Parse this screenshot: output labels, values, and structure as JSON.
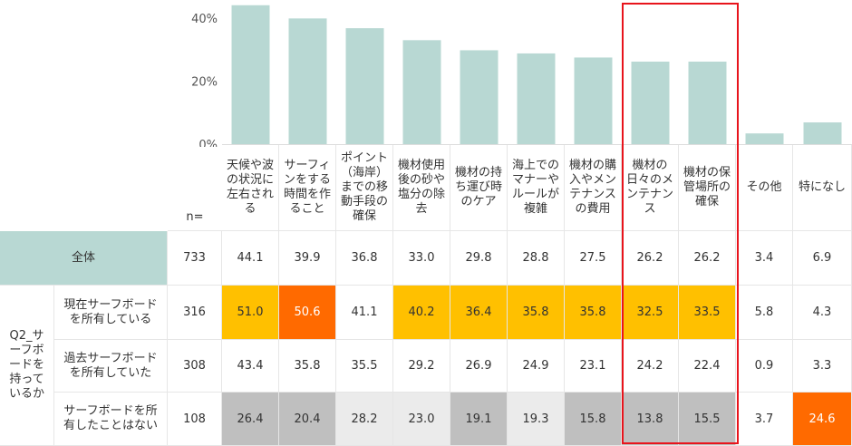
{
  "chart_data": {
    "type": "bar",
    "categories": [
      "天候や波の状況に左右される",
      "サーフィンをする時間を作ること",
      "ポイント（海岸）までの移動手段の確保",
      "機材使用後の砂や塩分の除去",
      "機材の持ち運び時のケア",
      "海上でのマナーやルールが複雑",
      "機材の購入やメンテナンスの費用",
      "機材の日々のメンテナンス",
      "機材の保管場所の確保",
      "その他",
      "特になし"
    ],
    "values": [
      44.1,
      39.9,
      36.8,
      33.0,
      29.8,
      28.8,
      27.5,
      26.2,
      26.2,
      3.4,
      6.9
    ],
    "ylim": [
      0,
      40
    ],
    "yticks": [
      "0%",
      "20%",
      "40%"
    ],
    "bar_color": "#b8d8d3",
    "grid": false
  },
  "table": {
    "n_label": "n=",
    "headers": [
      "天候や波の状況に左右される",
      "サーフィンをする時間を作ること",
      "ポイント（海岸）までの移動手段の確保",
      "機材使用後の砂や塩分の除去",
      "機材の持ち運び時のケア",
      "海上でのマナーやルールが複雑",
      "機材の購入やメンテナンスの費用",
      "機材の日々のメンテナンス",
      "機材の保管場所の確保",
      "その他",
      "特になし"
    ],
    "total": {
      "label": "全体",
      "n": "733",
      "values": [
        "44.1",
        "39.9",
        "36.8",
        "33.0",
        "29.8",
        "28.8",
        "27.5",
        "26.2",
        "26.2",
        "3.4",
        "6.9"
      ]
    },
    "group_label": "Q2_サーフボードを持っているか",
    "rows": [
      {
        "label": "現在サーフボードを所有している",
        "n": "316",
        "values": [
          "51.0",
          "50.6",
          "41.1",
          "40.2",
          "36.4",
          "35.8",
          "35.8",
          "32.5",
          "33.5",
          "5.8",
          "4.3"
        ],
        "highlight": [
          "y",
          "o",
          "",
          "y",
          "y",
          "y",
          "y",
          "y",
          "y",
          "",
          ""
        ]
      },
      {
        "label": "過去サーフボードを所有していた",
        "n": "308",
        "values": [
          "43.4",
          "35.8",
          "35.5",
          "29.2",
          "26.9",
          "24.9",
          "23.1",
          "24.2",
          "22.4",
          "0.9",
          "3.3"
        ],
        "highlight": [
          "",
          "",
          "",
          "",
          "",
          "",
          "",
          "",
          "",
          "",
          ""
        ]
      },
      {
        "label": "サーフボードを所有したことはない",
        "n": "108",
        "values": [
          "26.4",
          "20.4",
          "28.2",
          "23.0",
          "19.1",
          "19.3",
          "15.8",
          "13.8",
          "15.5",
          "3.7",
          "24.6"
        ],
        "highlight": [
          "g",
          "g",
          "lg",
          "lg",
          "g",
          "lg",
          "g",
          "g",
          "g",
          "",
          "o"
        ]
      }
    ],
    "highlight_colors": {
      "y": "#ffc000",
      "o": "#ff6a00",
      "g": "#bfbfbf",
      "lg": "#ebebeb",
      "red_box": "#e8141c"
    }
  }
}
